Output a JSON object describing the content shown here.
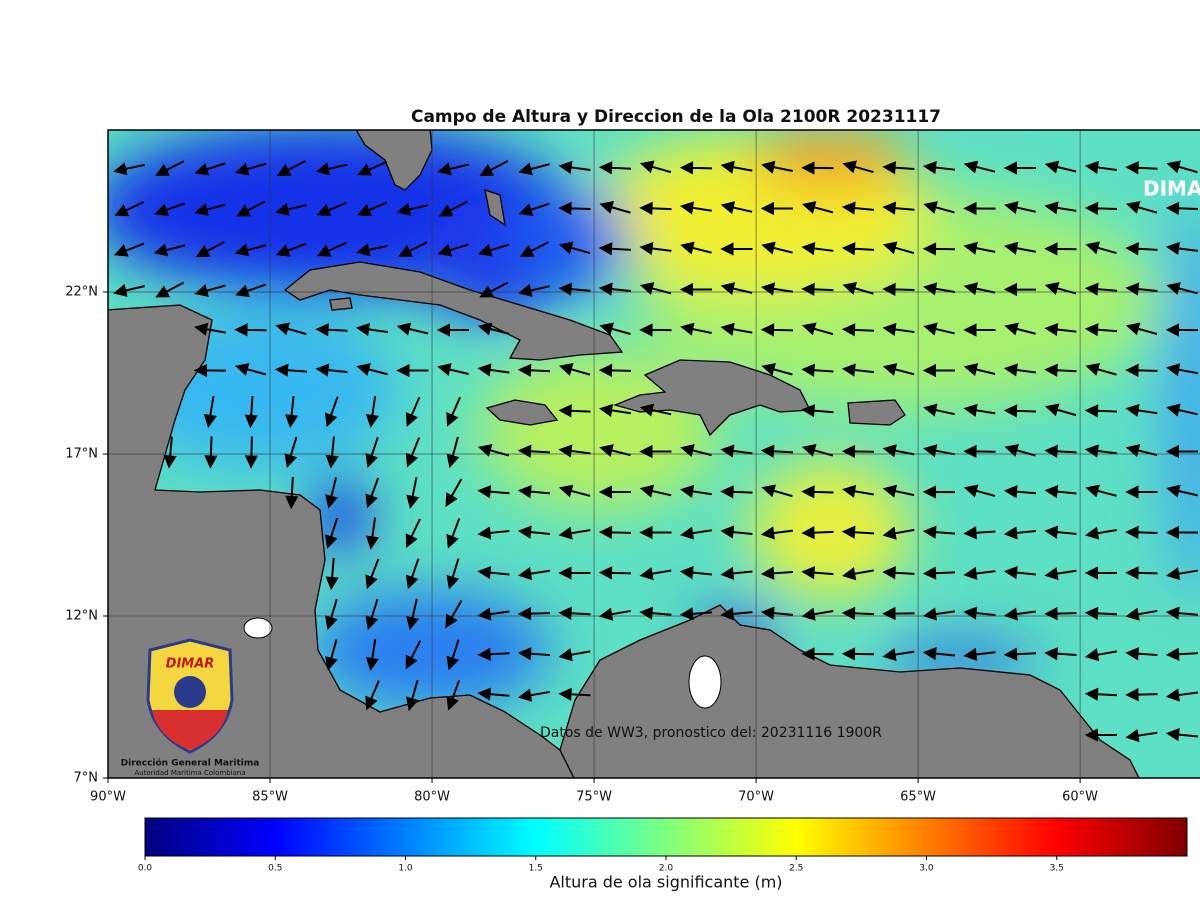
{
  "title": "Campo de Altura y Direccion de la Ola 2100R 20231117",
  "map": {
    "lon_range": [
      -90,
      -56.3
    ],
    "lat_range": [
      7,
      27
    ],
    "lon_ticks": [
      {
        "value": -90,
        "label": "90°W"
      },
      {
        "value": -85,
        "label": "85°W"
      },
      {
        "value": -80,
        "label": "80°W"
      },
      {
        "value": -75,
        "label": "75°W"
      },
      {
        "value": -70,
        "label": "70°W"
      },
      {
        "value": -65,
        "label": "65°W"
      },
      {
        "value": -60,
        "label": "60°W"
      }
    ],
    "lat_ticks": [
      {
        "value": 22,
        "label": "22°N"
      },
      {
        "value": 17,
        "label": "17°N"
      },
      {
        "value": 12,
        "label": "12°N"
      },
      {
        "value": 7,
        "label": "7°N"
      }
    ],
    "watermark": "DIMA",
    "annotation": "Datos de WW3, pronostico del: 20231116 1900R"
  },
  "logo": {
    "brand": "DIMAR",
    "name": "Dirección General Maritima",
    "subtitle": "Autoridad Maritima Colombiana"
  },
  "colorbar": {
    "range": [
      0,
      4
    ],
    "ticks": [
      {
        "value": 0,
        "label": "0.0"
      },
      {
        "value": 0.5,
        "label": "0.5"
      },
      {
        "value": 1,
        "label": "1.0"
      },
      {
        "value": 1.5,
        "label": "1.5"
      },
      {
        "value": 2,
        "label": "2.0"
      },
      {
        "value": 2.5,
        "label": "2.5"
      },
      {
        "value": 3,
        "label": "3.0"
      },
      {
        "value": 3.5,
        "label": "3.5"
      }
    ],
    "label": "Altura de ola significante (m)",
    "colors": [
      "#00007f",
      "#0000ff",
      "#007fff",
      "#00ffff",
      "#7fff7f",
      "#ffff00",
      "#ff7f00",
      "#ff0000",
      "#7f0000"
    ]
  }
}
